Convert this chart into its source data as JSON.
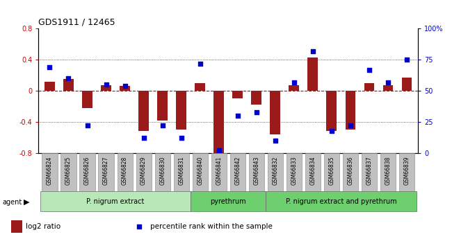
{
  "title": "GDS1911 / 12465",
  "samples": [
    "GSM66824",
    "GSM66825",
    "GSM66826",
    "GSM66827",
    "GSM66828",
    "GSM66829",
    "GSM66830",
    "GSM66831",
    "GSM66840",
    "GSM66841",
    "GSM66842",
    "GSM66843",
    "GSM66832",
    "GSM66833",
    "GSM66834",
    "GSM66835",
    "GSM66836",
    "GSM66837",
    "GSM66838",
    "GSM66839"
  ],
  "log2_ratio": [
    0.12,
    0.15,
    -0.22,
    0.07,
    0.06,
    -0.52,
    -0.38,
    -0.5,
    0.1,
    -0.8,
    -0.1,
    -0.18,
    -0.56,
    0.07,
    0.43,
    -0.52,
    -0.5,
    0.1,
    0.07,
    0.17
  ],
  "pct_rank": [
    69,
    60,
    22,
    55,
    54,
    12,
    22,
    12,
    72,
    2,
    30,
    33,
    10,
    57,
    82,
    18,
    22,
    67,
    57,
    75
  ],
  "groups": [
    {
      "label": "P. nigrum extract",
      "start": 0,
      "end": 8,
      "color": "#b8e8b8"
    },
    {
      "label": "pyrethrum",
      "start": 8,
      "end": 12,
      "color": "#6ecf6e"
    },
    {
      "label": "P. nigrum extract and pyrethrum",
      "start": 12,
      "end": 20,
      "color": "#6ecf6e"
    }
  ],
  "bar_color": "#9b1a1a",
  "dot_color": "#0000cc",
  "ylim_left": [
    -0.8,
    0.8
  ],
  "yticks_left": [
    -0.8,
    -0.4,
    0.0,
    0.4,
    0.8
  ],
  "ytick_labels_left": [
    "-0.8",
    "-0.4",
    "0",
    "0.4",
    "0.8"
  ],
  "yticks_right": [
    0,
    25,
    50,
    75,
    100
  ],
  "ytick_labels_right": [
    "0",
    "25",
    "50",
    "75",
    "100%"
  ],
  "hline_color": "#cc0000",
  "dot_hline_color": "#cc0000",
  "grid_dotted_color": "#333333",
  "agent_label": "agent",
  "legend_items": [
    {
      "label": "log2 ratio",
      "color": "#9b1a1a"
    },
    {
      "label": "percentile rank within the sample",
      "color": "#0000cc"
    }
  ],
  "sample_box_color": "#c0c0c0",
  "sample_box_edge": "#888888"
}
